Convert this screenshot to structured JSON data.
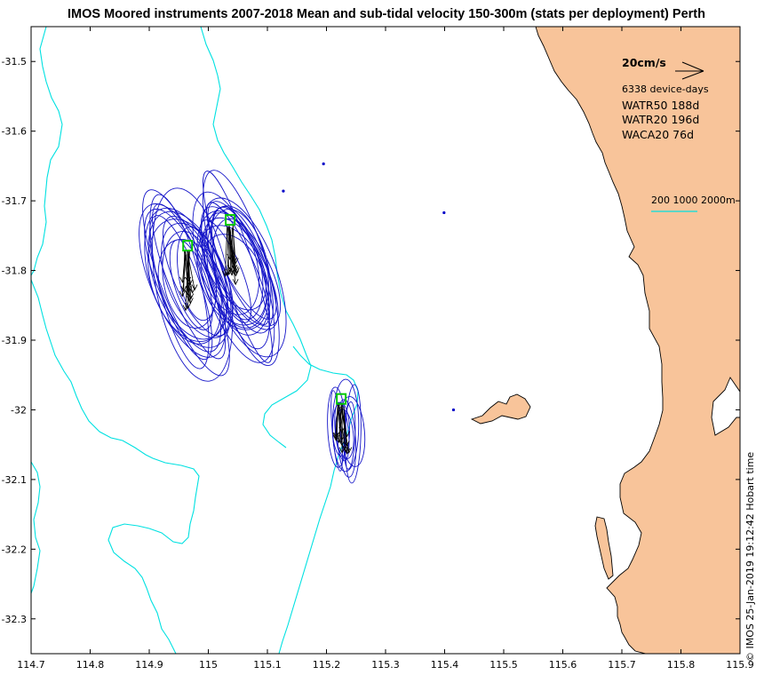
{
  "title": "IMOS Moored instruments 2007-2018 Mean and sub-tidal velocity 150-300m (stats per deployment) Perth",
  "footer": "© IMOS 25-Jan-2019 19:12:42 Hobart time",
  "legend": {
    "scale_label": "20cm/s",
    "device_days": "6338 device-days",
    "stations": [
      "WATR50 188d",
      "WATR20 196d",
      "WACA20 76d"
    ],
    "depth_contours": "200 1000 2000m"
  },
  "axes": {
    "x_ticks": [
      "114.7",
      "114.8",
      "114.9",
      "115",
      "115.1",
      "115.2",
      "115.3",
      "115.4",
      "115.5",
      "115.6",
      "115.7",
      "115.8",
      "115.9"
    ],
    "y_ticks": [
      "-31.5",
      "-31.6",
      "-31.7",
      "-31.8",
      "-31.9",
      "-32",
      "-32.1",
      "-32.2",
      "-32.3"
    ]
  },
  "map_data": {
    "lon_range": [
      114.7,
      115.9
    ],
    "lat_range": [
      -32.35,
      -31.45
    ],
    "moorings": [
      {
        "name": "WATR50",
        "lon": 114.965,
        "lat": -31.765
      },
      {
        "name": "WATR20",
        "lon": 115.037,
        "lat": -31.728
      },
      {
        "name": "WACA20",
        "lon": 115.225,
        "lat": -31.985
      }
    ],
    "points": [
      {
        "lon": 115.195,
        "lat": -31.647
      },
      {
        "lon": 115.127,
        "lat": -31.686
      },
      {
        "lon": 115.399,
        "lat": -31.717
      },
      {
        "lon": 115.415,
        "lat": -32.0
      }
    ]
  },
  "colors": {
    "land": "#f8c49a",
    "contour": "#00e1e1",
    "ellipse": "#1414c8",
    "mooring": "#00c800",
    "point": "#0000c8"
  }
}
